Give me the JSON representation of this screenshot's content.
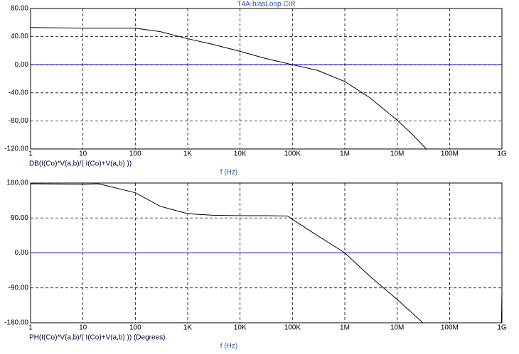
{
  "chart_data": [
    {
      "type": "line",
      "title": "T4A-biasLoop.CIR",
      "xlabel": "f (Hz)",
      "xscale": "log",
      "grid": true,
      "zero_line_color": "#0000c0",
      "xlim": [
        1,
        1000000000
      ],
      "xticks": [
        1,
        10,
        100,
        {
          "value": 1000,
          "label": "1K"
        },
        {
          "value": 10000,
          "label": "10K"
        },
        {
          "value": 100000,
          "label": "100K"
        },
        {
          "value": 1000000,
          "label": "1M"
        },
        {
          "value": 10000000,
          "label": "10M"
        },
        {
          "value": 100000000,
          "label": "100M"
        },
        {
          "value": 1000000000,
          "label": "1G"
        }
      ],
      "ylim": [
        -120,
        80
      ],
      "yticks": [
        {
          "value": -120,
          "label": "-120.00"
        },
        {
          "value": -80,
          "label": "-80.00"
        },
        {
          "value": -40,
          "label": "-40.00"
        },
        {
          "value": 0,
          "label": "0.00"
        },
        {
          "value": 40,
          "label": "40.00"
        },
        {
          "value": 80,
          "label": "80.00"
        }
      ],
      "x": [
        1,
        10,
        100,
        300,
        1000,
        3000,
        10000,
        30000,
        100000,
        300000,
        1000000,
        3000000,
        10000000,
        20000000,
        36000000
      ],
      "series": [
        {
          "name": "DB(I(Co)*V(a,b)/( I(Co)+V(a,b) ))",
          "color": "#000000",
          "values": [
            53,
            52,
            52,
            47,
            37,
            29,
            19,
            9,
            0,
            -8,
            -24,
            -47,
            -79,
            -100,
            -120
          ]
        }
      ]
    },
    {
      "type": "line",
      "xlabel": "f (Hz)",
      "xscale": "log",
      "grid": true,
      "zero_line_color": "#0000c0",
      "xlim": [
        1,
        1000000000
      ],
      "xticks": [
        1,
        10,
        100,
        {
          "value": 1000,
          "label": "1K"
        },
        {
          "value": 10000,
          "label": "10K"
        },
        {
          "value": 100000,
          "label": "100K"
        },
        {
          "value": 1000000,
          "label": "1M"
        },
        {
          "value": 10000000,
          "label": "10M"
        },
        {
          "value": 100000000,
          "label": "100M"
        },
        {
          "value": 1000000000,
          "label": "1G"
        }
      ],
      "ylim": [
        -180,
        180
      ],
      "yticks": [
        {
          "value": -180,
          "label": "-180.00"
        },
        {
          "value": -90,
          "label": "-90.00"
        },
        {
          "value": 0,
          "label": "0.00"
        },
        {
          "value": 90,
          "label": "90.00"
        },
        {
          "value": 180,
          "label": "180.00"
        }
      ],
      "x": [
        1,
        10,
        20,
        100,
        300,
        1000,
        3000,
        10000,
        30000,
        80000,
        200000,
        1000000,
        3000000,
        10000000,
        31000000,
        500000000,
        980000000,
        1000000000
      ],
      "series": [
        {
          "name": "PH(I(Co)*V(a,b)/( I(Co)+V(a,b) )) (Degrees)",
          "color": "#000000",
          "values": [
            178,
            177,
            178,
            155,
            120,
            101,
            97,
            96,
            96,
            95,
            60,
            0,
            -60,
            -120,
            -180,
            null,
            -180,
            -101
          ]
        }
      ]
    }
  ]
}
